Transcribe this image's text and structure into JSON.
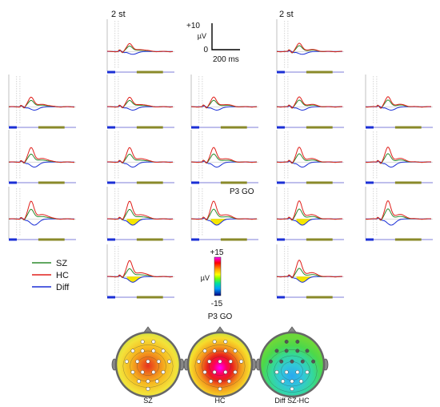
{
  "figure": {
    "stim_label_left": "2 st",
    "stim_label_right": "2 st",
    "scale_bar": {
      "amp_top": "+10",
      "amp_bottom": "0",
      "amp_unit": "µV",
      "time": "200 ms"
    },
    "p3go_label_grid": "P3 GO",
    "p3go_label_maps": "P3 GO",
    "colorbar": {
      "top": "+15",
      "bottom": "-15",
      "unit": "µV"
    },
    "legend": [
      {
        "name": "SZ",
        "color": "#2e8b2e"
      },
      {
        "name": "HC",
        "color": "#e0201b"
      },
      {
        "name": "Diff",
        "color": "#1b2fd6"
      }
    ],
    "topomaps": [
      {
        "label": "SZ"
      },
      {
        "label": "HC"
      },
      {
        "label": "Diff SZ-HC"
      }
    ]
  },
  "chart_data": {
    "type": "line",
    "x_unit": "ms",
    "y_unit": "µV",
    "series": [
      {
        "name": "SZ",
        "color": "#2e8b2e"
      },
      {
        "name": "HC",
        "color": "#e0201b"
      },
      {
        "name": "Diff",
        "color": "#1b2fd6"
      }
    ],
    "shaded_component": "P3 GO",
    "colorbar_range": [
      -15,
      15
    ],
    "electrode_grid": [
      {
        "row": 0,
        "cols": [
          1,
          3
        ],
        "peak_hc": 5,
        "peak_sz": 3.5
      },
      {
        "row": 1,
        "cols": [
          0,
          1,
          2,
          3,
          4
        ],
        "peak_hc": 6,
        "peak_sz": 4
      },
      {
        "row": 2,
        "cols": [
          0,
          1,
          2,
          3,
          4
        ],
        "peak_hc": 9,
        "peak_sz": 5
      },
      {
        "row": 3,
        "cols": [
          0,
          1,
          2,
          3,
          4
        ],
        "peak_hc": 11,
        "peak_sz": 6
      },
      {
        "row": 4,
        "cols": [
          1,
          3
        ],
        "peak_hc": 10,
        "peak_sz": 5
      }
    ]
  }
}
